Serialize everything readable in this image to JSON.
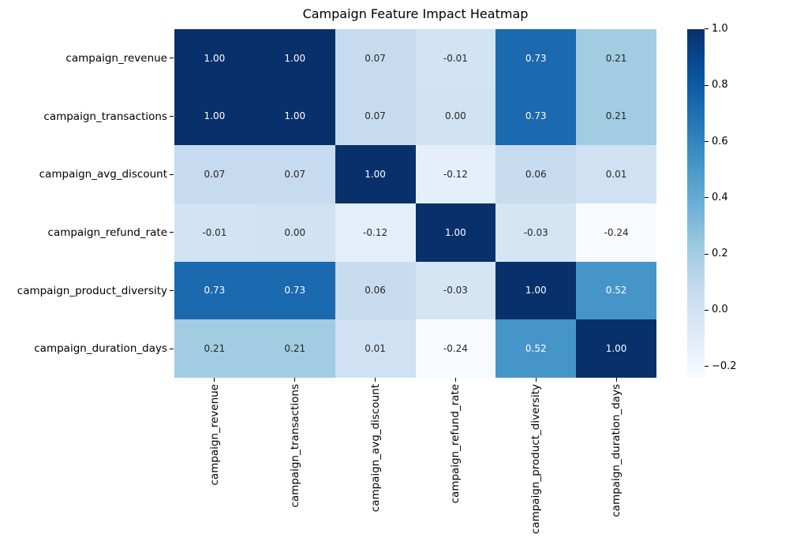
{
  "chart_data": {
    "type": "heatmap",
    "title": "Campaign Feature Impact Heatmap",
    "x_labels": [
      "campaign_revenue",
      "campaign_transactions",
      "campaign_avg_discount",
      "campaign_refund_rate",
      "campaign_product_diversity",
      "campaign_duration_days"
    ],
    "y_labels": [
      "campaign_revenue",
      "campaign_transactions",
      "campaign_avg_discount",
      "campaign_refund_rate",
      "campaign_product_diversity",
      "campaign_duration_days"
    ],
    "matrix": [
      [
        1.0,
        1.0,
        0.07,
        -0.01,
        0.73,
        0.21
      ],
      [
        1.0,
        1.0,
        0.07,
        0.0,
        0.73,
        0.21
      ],
      [
        0.07,
        0.07,
        1.0,
        -0.12,
        0.06,
        0.01
      ],
      [
        -0.01,
        0.0,
        -0.12,
        1.0,
        -0.03,
        -0.24
      ],
      [
        0.73,
        0.73,
        0.06,
        -0.03,
        1.0,
        0.52
      ],
      [
        0.21,
        0.21,
        0.01,
        -0.24,
        0.52,
        1.0
      ]
    ],
    "value_decimals": 2,
    "colormap": "Blues",
    "colormap_anchors": [
      "#f7fbff",
      "#deebf7",
      "#c6dbef",
      "#9ecae1",
      "#6baed6",
      "#4292c6",
      "#2171b5",
      "#08519c",
      "#08306b"
    ],
    "vmin": -0.24,
    "vmax": 1.0,
    "colorbar": {
      "position": "right",
      "tick_values": [
        1.0,
        0.8,
        0.6,
        0.4,
        0.2,
        0.0,
        -0.2
      ],
      "tick_labels": [
        "1.0",
        "0.8",
        "0.6",
        "0.4",
        "0.2",
        "0.0",
        "−0.2"
      ]
    },
    "annotation_colors": {
      "on_dark": "#ffffff",
      "on_light": "#262626"
    },
    "axis_text_color": "#000000",
    "background": "#ffffff",
    "grid": false,
    "legend": "none"
  }
}
